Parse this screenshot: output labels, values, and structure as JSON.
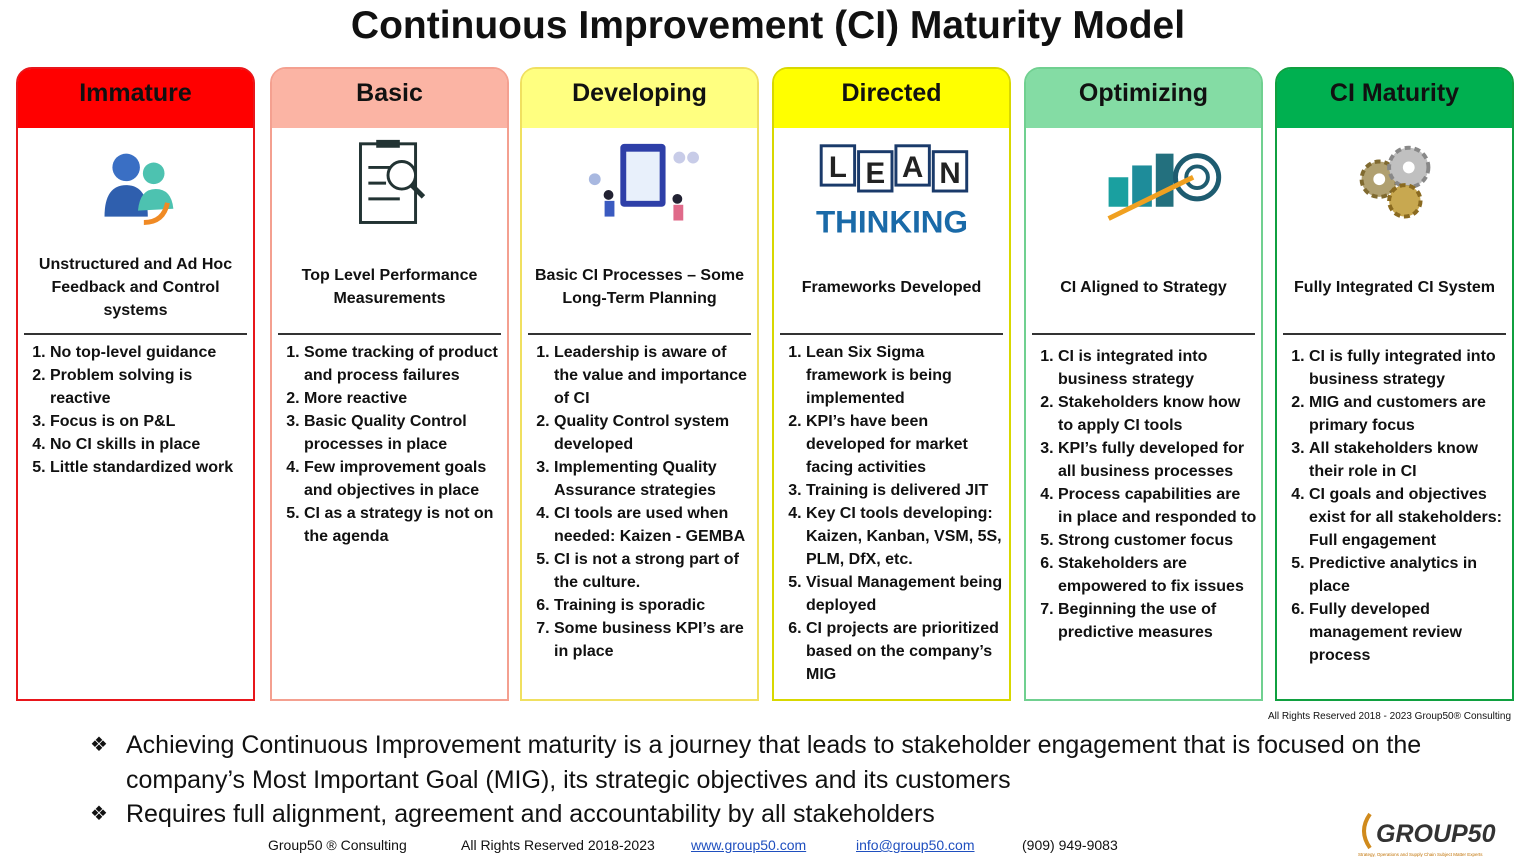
{
  "title": "Continuous Improvement (CI) Maturity Model",
  "columns": [
    {
      "header": "Immature",
      "description": "Unstructured and Ad Hoc Feedback and Control systems",
      "items": [
        "No top-level guidance",
        "Problem solving is reactive",
        "Focus is on P&L",
        "No CI skills in place",
        "Little standardized work"
      ]
    },
    {
      "header": "Basic",
      "description": "Top Level Performance Measurements",
      "items": [
        "Some tracking of product and process failures",
        "More reactive",
        "Basic Quality Control processes in place",
        "Few improvement goals and objectives in place",
        "CI as a strategy is not on the agenda"
      ]
    },
    {
      "header": "Developing",
      "description": "Basic CI Processes – Some Long-Term Planning",
      "items": [
        "Leadership is aware of the value and importance of CI",
        "Quality Control system developed",
        "Implementing Quality Assurance strategies",
        "CI tools are used when needed: Kaizen - GEMBA",
        "CI is not a strong part of the culture.",
        "Training is sporadic",
        "Some business KPI’s are in place"
      ]
    },
    {
      "header": "Directed",
      "description": "Frameworks Developed",
      "icon_letters": [
        "L",
        "E",
        "A",
        "N"
      ],
      "icon_caption": "THINKING",
      "items": [
        "Lean Six Sigma framework is being implemented",
        "KPI’s have been developed for market facing activities",
        "Training is delivered JIT",
        "Key CI tools developing: Kaizen, Kanban, VSM, 5S, PLM, DfX, etc.",
        "Visual Management being deployed",
        "CI projects are prioritized based on the company’s MIG"
      ]
    },
    {
      "header": "Optimizing",
      "description": "CI Aligned to Strategy",
      "items": [
        "CI is integrated into business strategy",
        "Stakeholders know how to apply CI tools",
        "KPI’s fully developed for all business processes",
        "Process capabilities are in place and responded to",
        "Strong customer focus",
        "Stakeholders are empowered to fix issues",
        "Beginning the use of predictive measures"
      ]
    },
    {
      "header": "CI Maturity",
      "description": "Fully Integrated CI System",
      "items": [
        "CI is fully integrated into business strategy",
        "MIG and customers are primary focus",
        "All stakeholders know their role in CI",
        "CI goals and objectives exist for all stakeholders: Full engagement",
        "Predictive analytics in place",
        "Fully developed management review process"
      ]
    }
  ],
  "rights_note": "All Rights Reserved 2018 - 2023  Group50® Consulting",
  "bullets": [
    "Achieving Continuous Improvement maturity is a journey that leads to stakeholder engagement that is focused on the company’s Most Important Goal (MIG), its strategic objectives and its customers",
    "Requires full alignment, agreement and accountability by all stakeholders"
  ],
  "footer": {
    "company": "Group50 ® Consulting",
    "rights": "All Rights Reserved 2018-2023",
    "website": "www.group50.com",
    "email": "info@group50.com",
    "phone": "(909) 949-9083"
  },
  "logo": {
    "name": "GROUP50",
    "tagline": "Strategy, Operations and Supply Chain Subject Matter Experts"
  }
}
